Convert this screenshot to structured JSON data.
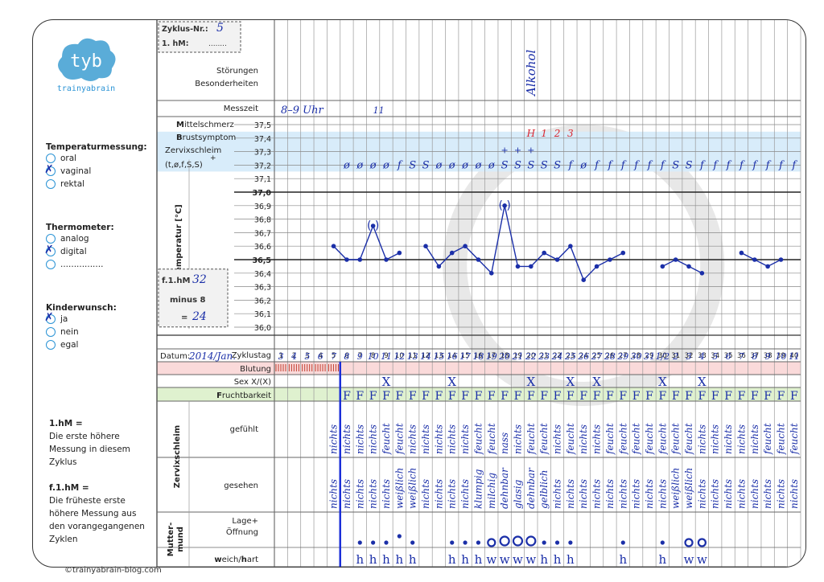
{
  "logo": {
    "text": "tyb",
    "brand": "trainyabrain"
  },
  "copyright": "©trainyabrain-blog.com",
  "cycle": {
    "label": "Zyklus-Nr.:",
    "value": "5",
    "hm_label": "1. hM:",
    "hm_value": "........"
  },
  "rows": {
    "stoerungen": "Störungen",
    "besonderheiten": "Besonderheiten",
    "messzeit": "Messzeit",
    "mittelschmerz_first": "M",
    "mittelschmerz_rest": "ittelschmerz",
    "brustsymptom_first": "B",
    "brustsymptom_rest": "rustsymptom",
    "zervix": "Zervixschleim",
    "zervix_codes": "(t,ø,f,S,S)",
    "zervix_plus": "+",
    "basal_axis": "Basaltemperatur [°C]",
    "zyklustag": "Zyklustag",
    "datum": "Datum:",
    "blutung": "Blutung",
    "sex": "Sex X/(X)",
    "frucht_first": "F",
    "frucht_rest": "ruchtbarkeit",
    "zervixschleim_side": "Zervixschleim",
    "gefuehlt": "gefühlt",
    "gesehen": "gesehen",
    "muttermund": "Mutter-\nmund",
    "lage": "Lage+",
    "oeffnung": "Öffnung",
    "weich_hart_first": "w",
    "weich_hart_mid": "eich/",
    "weich_hart_h": "h",
    "weich_hart_rest": "art"
  },
  "sidebar": {
    "temp": {
      "title": "Temperaturmessung:",
      "options": [
        "oral",
        "vaginal",
        "rektal"
      ],
      "checked": "vaginal"
    },
    "thermo": {
      "title": "Thermometer:",
      "options": [
        "analog",
        "digital",
        "................"
      ],
      "checked": "digital"
    },
    "kinder": {
      "title": "Kinderwunsch:",
      "options": [
        "ja",
        "nein",
        "egal"
      ],
      "checked": "ja"
    },
    "hm_def_title": "1.hM =",
    "hm_def": [
      "Die erste höhere",
      "Messung in diesem",
      "Zyklus"
    ],
    "fhm_def_title": "f.1.hM =",
    "fhm_def": [
      "Die früheste erste",
      "höhere Messung aus",
      "den vorangegangenen",
      "Zyklen"
    ]
  },
  "fhm_box": {
    "label": "f.1.hM",
    "value": "32",
    "minus": "minus 8",
    "eq": "=",
    "result": "24"
  },
  "temp_ticks": [
    "37,5",
    "37,4",
    "37,3",
    "37,2",
    "37,1",
    "37,0",
    "36,9",
    "36,8",
    "36,7",
    "36,6",
    "36,5",
    "36,4",
    "36,3",
    "36,2",
    "36,1",
    "36,0"
  ],
  "annotations": {
    "alkohol": "Alkohol",
    "messzeit_value": "8–9 Uhr",
    "messzeit_day": "11",
    "datum_prefix": "2014/Jan.",
    "mittelschmerz_marks": [
      "H",
      "1",
      "2",
      "3"
    ]
  },
  "chart_data": {
    "type": "line",
    "title": "",
    "x": [
      1,
      2,
      3,
      4,
      5,
      6,
      7,
      8,
      9,
      10,
      11,
      12,
      13,
      14,
      15,
      16,
      17,
      18,
      19,
      20,
      21,
      22,
      23,
      24,
      25,
      26,
      27,
      28,
      29,
      30,
      31,
      32,
      33,
      34,
      35,
      36,
      37,
      38,
      39,
      40
    ],
    "xlabel": "Zyklustag",
    "ylabel": "Basaltemperatur [°C]",
    "ylim": [
      36.0,
      37.5
    ],
    "temps": [
      null,
      null,
      null,
      null,
      36.6,
      36.5,
      36.5,
      36.75,
      36.5,
      36.55,
      null,
      36.6,
      36.45,
      36.55,
      36.6,
      36.5,
      36.4,
      36.9,
      36.45,
      36.45,
      36.55,
      36.5,
      36.6,
      36.35,
      36.45,
      36.5,
      36.55,
      null,
      null,
      36.45,
      36.5,
      36.45,
      36.4,
      null,
      null,
      36.55,
      36.5,
      36.45,
      36.5,
      null
    ],
    "bracketed_days": [
      8,
      18
    ],
    "coverline": 36.5
  },
  "dates": [
    "",
    "3",
    "4",
    "5",
    "6",
    "7",
    "8",
    "9",
    "10",
    "11",
    "12",
    "13",
    "14",
    "15",
    "16",
    "17",
    "18",
    "19",
    "20",
    "21",
    "22",
    "23",
    "24",
    "25",
    "26",
    "27",
    "28",
    "29",
    "30",
    "31",
    "1/2",
    "2",
    "3",
    "4",
    "5",
    "6",
    "7",
    "8",
    "9",
    "10",
    "11"
  ],
  "zervix_codes": [
    "",
    "",
    "",
    "",
    "",
    "ø",
    "ø",
    "ø",
    "ø",
    "f",
    "S",
    "S",
    "ø",
    "ø",
    "ø",
    "ø",
    "ø",
    "S",
    "S",
    "S",
    "S",
    "S",
    "f",
    "ø",
    "f",
    "f",
    "f",
    "f",
    "f",
    "f",
    "S",
    "S",
    "f",
    "f",
    "f",
    "f",
    "f",
    "f",
    "f",
    "f"
  ],
  "zervix_plus_days": [
    18,
    19,
    20
  ],
  "bleeding_days": [
    1,
    2,
    3,
    4,
    5
  ],
  "sex_days": [
    9,
    14,
    20,
    23,
    25,
    30,
    33
  ],
  "fertility_from": 6,
  "fertility_text": "F",
  "feel": [
    "",
    "",
    "",
    "",
    "nichts",
    "nichts",
    "nichts",
    "nichts",
    "feucht",
    "feucht",
    "nichts",
    "nichts",
    "nichts",
    "nichts",
    "nichts",
    "feucht",
    "feucht",
    "nass",
    "nichts",
    "feucht",
    "feucht",
    "nichts",
    "feucht",
    "nichts",
    "nichts",
    "feucht",
    "feucht",
    "feucht",
    "feucht",
    "feucht",
    "feucht",
    "feucht",
    "nichts",
    "nichts",
    "nichts",
    "nichts",
    "nichts",
    "feucht",
    "feucht",
    "feucht"
  ],
  "seen": [
    "",
    "",
    "",
    "",
    "nichts",
    "nichts",
    "nichts",
    "nichts",
    "nichts",
    "weißlich",
    "weißlich",
    "nichts",
    "nichts",
    "nichts",
    "nichts",
    "klumpig",
    "milchig",
    "dehnbar",
    "glasig",
    "dehnbar",
    "gelblich",
    "nichts",
    "nichts",
    "nichts",
    "nichts",
    "nichts",
    "nichts",
    "nichts",
    "nichts",
    "nichts",
    "weißlich",
    "weißlich",
    "nichts",
    "nichts",
    "nichts",
    "nichts",
    "nichts",
    "nichts",
    "nichts",
    "nichts"
  ],
  "mm_pos": [
    "",
    "",
    "",
    "",
    "",
    "",
    "dot",
    "dot",
    "dot",
    "dotup",
    "dot",
    "",
    "",
    "dot",
    "dot",
    "dot",
    "ring",
    "ringbig",
    "ringbig",
    "ringbig",
    "dot",
    "dot",
    "dot",
    "",
    "",
    "",
    "dot",
    "",
    "",
    "dot",
    "",
    "ring",
    "ring",
    "",
    "",
    "",
    "",
    "",
    "",
    ""
  ],
  "mm_hard": [
    "",
    "",
    "",
    "",
    "",
    "",
    "h",
    "h",
    "h",
    "h",
    "h",
    "",
    "",
    "h",
    "h",
    "h",
    "w",
    "w",
    "w",
    "w",
    "h",
    "h",
    "h",
    "",
    "",
    "",
    "h",
    "",
    "",
    "h",
    "",
    "w",
    "w",
    "",
    "",
    "",
    "",
    "",
    "",
    ""
  ]
}
